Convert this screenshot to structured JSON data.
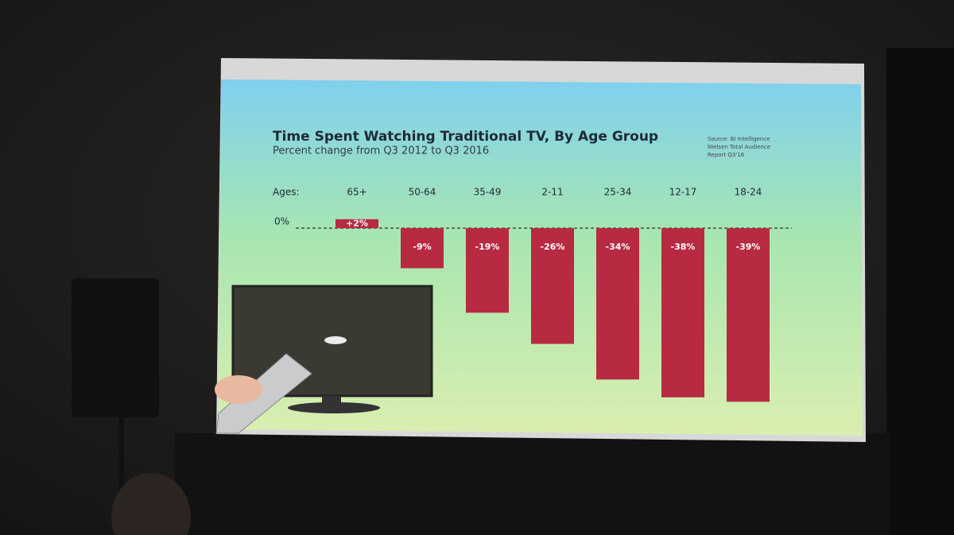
{
  "chart_data": {
    "type": "bar",
    "title": "Time Spent Watching Traditional TV, By Age Group",
    "subtitle": "Percent change from Q3 2012 to Q3 2016",
    "source": [
      "Source: BI Intelligence",
      "Nielsen Total Audience",
      "Report Q3'16"
    ],
    "x_label": "Ages:",
    "categories": [
      "65+",
      "50-64",
      "35-49",
      "2-11",
      "25-34",
      "12-17",
      "18-24"
    ],
    "values": [
      2,
      -9,
      -19,
      -26,
      -34,
      -38,
      -39
    ],
    "value_labels": [
      "+2%",
      "-9%",
      "-19%",
      "-26%",
      "-34%",
      "-38%",
      "-39%"
    ],
    "color": "#b72a42",
    "ylim": [
      -40,
      5
    ],
    "yticks": [
      {
        "value": 0,
        "label": "0%"
      }
    ],
    "grid": true
  }
}
